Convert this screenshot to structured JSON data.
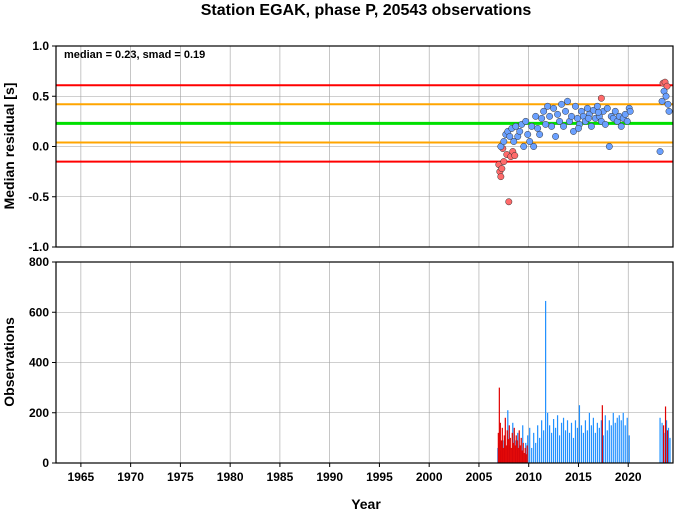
{
  "title": "Station EGAK, phase P, 20543 observations",
  "colors": {
    "green_line": "#00e000",
    "orange_line": "#ffa500",
    "red_line": "#ff0000",
    "point_good_fill": "#6aa0ff",
    "point_bad_fill": "#ff6a6a",
    "bar_blue": "#2090ff",
    "bar_red": "#e00000"
  },
  "chart_data": [
    {
      "type": "scatter",
      "ylabel": "Median residual [s]",
      "annotation": "median = 0.23, smad = 0.19",
      "xlim": [
        1962.5,
        2024.5
      ],
      "ylim": [
        -1.0,
        1.0
      ],
      "grid": true,
      "y_ticks": [
        "1.0",
        "0.5",
        "0.0",
        "-0.5",
        "-1.0"
      ],
      "horizontal_lines": [
        {
          "y": 0.61,
          "color": "red"
        },
        {
          "y": 0.42,
          "color": "orange"
        },
        {
          "y": 0.23,
          "color": "green"
        },
        {
          "y": 0.04,
          "color": "orange"
        },
        {
          "y": -0.15,
          "color": "red"
        }
      ],
      "series": [
        {
          "color_key": "red",
          "points": [
            [
              2007.0,
              -0.18
            ],
            [
              2007.1,
              -0.25
            ],
            [
              2007.2,
              -0.3
            ],
            [
              2007.3,
              -0.22
            ],
            [
              2007.5,
              -0.15
            ],
            [
              2007.8,
              -0.08
            ],
            [
              2008.0,
              -0.55
            ],
            [
              2008.2,
              -0.1
            ],
            [
              2008.4,
              -0.05
            ],
            [
              2008.6,
              -0.09
            ],
            [
              2007.4,
              -0.02
            ],
            [
              2017.3,
              0.48
            ],
            [
              2023.5,
              0.63
            ],
            [
              2023.7,
              0.64
            ],
            [
              2023.9,
              0.6
            ]
          ]
        },
        {
          "color_key": "blue",
          "points": [
            [
              2007.2,
              0.0
            ],
            [
              2007.5,
              0.05
            ],
            [
              2007.7,
              0.12
            ],
            [
              2007.9,
              0.15
            ],
            [
              2008.1,
              0.1
            ],
            [
              2008.3,
              0.18
            ],
            [
              2008.5,
              0.05
            ],
            [
              2008.7,
              0.2
            ],
            [
              2008.9,
              0.1
            ],
            [
              2009.1,
              0.15
            ],
            [
              2009.3,
              0.22
            ],
            [
              2009.5,
              0.0
            ],
            [
              2009.7,
              0.25
            ],
            [
              2009.9,
              0.12
            ],
            [
              2010.1,
              0.05
            ],
            [
              2010.3,
              0.2
            ],
            [
              2010.5,
              0.0
            ],
            [
              2010.7,
              0.3
            ],
            [
              2010.9,
              0.18
            ],
            [
              2011.1,
              0.12
            ],
            [
              2011.3,
              0.28
            ],
            [
              2011.5,
              0.35
            ],
            [
              2011.7,
              0.22
            ],
            [
              2011.9,
              0.4
            ],
            [
              2012.1,
              0.3
            ],
            [
              2012.3,
              0.2
            ],
            [
              2012.5,
              0.38
            ],
            [
              2012.7,
              0.1
            ],
            [
              2012.9,
              0.32
            ],
            [
              2013.1,
              0.25
            ],
            [
              2013.3,
              0.42
            ],
            [
              2013.5,
              0.2
            ],
            [
              2013.7,
              0.35
            ],
            [
              2013.9,
              0.45
            ],
            [
              2014.1,
              0.25
            ],
            [
              2014.3,
              0.3
            ],
            [
              2014.5,
              0.15
            ],
            [
              2014.7,
              0.4
            ],
            [
              2014.9,
              0.28
            ],
            [
              2015.1,
              0.22
            ],
            [
              2015.3,
              0.35
            ],
            [
              2015.5,
              0.3
            ],
            [
              2015.7,
              0.25
            ],
            [
              2015.9,
              0.38
            ],
            [
              2016.1,
              0.32
            ],
            [
              2016.3,
              0.2
            ],
            [
              2016.5,
              0.36
            ],
            [
              2016.7,
              0.28
            ],
            [
              2016.9,
              0.4
            ],
            [
              2017.1,
              0.3
            ],
            [
              2017.3,
              0.25
            ],
            [
              2017.5,
              0.35
            ],
            [
              2017.7,
              0.22
            ],
            [
              2017.9,
              0.38
            ],
            [
              2018.1,
              0.0
            ],
            [
              2018.3,
              0.3
            ],
            [
              2018.5,
              0.28
            ],
            [
              2018.7,
              0.35
            ],
            [
              2018.9,
              0.25
            ],
            [
              2019.1,
              0.3
            ],
            [
              2019.3,
              0.2
            ],
            [
              2019.5,
              0.28
            ],
            [
              2019.7,
              0.32
            ],
            [
              2019.9,
              0.25
            ],
            [
              2020.1,
              0.38
            ],
            [
              2020.2,
              0.35
            ],
            [
              2023.2,
              -0.05
            ],
            [
              2023.4,
              0.45
            ],
            [
              2023.6,
              0.55
            ],
            [
              2023.8,
              0.5
            ],
            [
              2024.0,
              0.42
            ],
            [
              2024.1,
              0.35
            ],
            [
              2015.0,
              0.18
            ],
            [
              2016.0,
              0.28
            ],
            [
              2017.0,
              0.34
            ]
          ]
        }
      ]
    },
    {
      "type": "bar",
      "xlabel": "Year",
      "ylabel": "Observations",
      "xlim": [
        1962.5,
        2024.5
      ],
      "ylim": [
        0,
        800
      ],
      "grid": true,
      "x_ticks": [
        "1965",
        "1970",
        "1975",
        "1980",
        "1985",
        "1990",
        "1995",
        "2000",
        "2005",
        "2010",
        "2015",
        "2020"
      ],
      "y_ticks": [
        "800",
        "600",
        "400",
        "200",
        "0"
      ],
      "series": [
        {
          "color_key": "red",
          "bars": [
            [
              2006.95,
              120
            ],
            [
              2007.05,
              300
            ],
            [
              2007.15,
              160
            ],
            [
              2007.25,
              90
            ],
            [
              2007.35,
              140
            ],
            [
              2007.45,
              60
            ],
            [
              2007.55,
              110
            ],
            [
              2007.65,
              180
            ],
            [
              2007.75,
              70
            ],
            [
              2007.85,
              130
            ],
            [
              2007.95,
              95
            ],
            [
              2008.05,
              150
            ],
            [
              2008.15,
              100
            ],
            [
              2008.25,
              60
            ],
            [
              2008.35,
              120
            ],
            [
              2008.45,
              80
            ],
            [
              2008.55,
              140
            ],
            [
              2008.65,
              70
            ],
            [
              2008.75,
              110
            ],
            [
              2008.85,
              90
            ],
            [
              2008.95,
              60
            ],
            [
              2009.05,
              130
            ],
            [
              2009.15,
              70
            ],
            [
              2009.25,
              100
            ],
            [
              2009.35,
              50
            ],
            [
              2009.45,
              80
            ],
            [
              2009.55,
              40
            ],
            [
              2009.65,
              60
            ],
            [
              2009.75,
              35
            ],
            [
              2009.85,
              70
            ],
            [
              2017.4,
              230
            ],
            [
              2023.55,
              150
            ],
            [
              2023.75,
              225
            ],
            [
              2023.95,
              130
            ]
          ]
        },
        {
          "color_key": "blue",
          "bars": [
            [
              2006.9,
              60
            ],
            [
              2007.0,
              80
            ],
            [
              2007.2,
              50
            ],
            [
              2007.4,
              90
            ],
            [
              2007.6,
              100
            ],
            [
              2007.9,
              210
            ],
            [
              2008.1,
              70
            ],
            [
              2008.4,
              160
            ],
            [
              2008.7,
              90
            ],
            [
              2008.9,
              120
            ],
            [
              2009.1,
              60
            ],
            [
              2009.4,
              150
            ],
            [
              2009.7,
              80
            ],
            [
              2009.9,
              110
            ],
            [
              2010.1,
              140
            ],
            [
              2010.3,
              60
            ],
            [
              2010.5,
              120
            ],
            [
              2010.7,
              80
            ],
            [
              2010.9,
              150
            ],
            [
              2011.1,
              100
            ],
            [
              2011.3,
              170
            ],
            [
              2011.5,
              130
            ],
            [
              2011.7,
              645
            ],
            [
              2011.9,
              200
            ],
            [
              2012.1,
              150
            ],
            [
              2012.3,
              120
            ],
            [
              2012.5,
              175
            ],
            [
              2012.7,
              140
            ],
            [
              2012.9,
              190
            ],
            [
              2013.1,
              110
            ],
            [
              2013.3,
              160
            ],
            [
              2013.5,
              180
            ],
            [
              2013.7,
              130
            ],
            [
              2013.9,
              170
            ],
            [
              2014.1,
              120
            ],
            [
              2014.3,
              160
            ],
            [
              2014.5,
              100
            ],
            [
              2014.7,
              170
            ],
            [
              2014.9,
              140
            ],
            [
              2015.1,
              230
            ],
            [
              2015.3,
              150
            ],
            [
              2015.5,
              120
            ],
            [
              2015.7,
              170
            ],
            [
              2015.9,
              130
            ],
            [
              2016.1,
              200
            ],
            [
              2016.3,
              150
            ],
            [
              2016.5,
              180
            ],
            [
              2016.7,
              120
            ],
            [
              2016.9,
              160
            ],
            [
              2017.1,
              140
            ],
            [
              2017.3,
              170
            ],
            [
              2017.5,
              110
            ],
            [
              2017.7,
              190
            ],
            [
              2017.9,
              130
            ],
            [
              2018.1,
              170
            ],
            [
              2018.3,
              150
            ],
            [
              2018.5,
              200
            ],
            [
              2018.7,
              160
            ],
            [
              2018.9,
              180
            ],
            [
              2019.1,
              190
            ],
            [
              2019.3,
              170
            ],
            [
              2019.5,
              200
            ],
            [
              2019.7,
              150
            ],
            [
              2019.9,
              180
            ],
            [
              2020.1,
              110
            ],
            [
              2023.2,
              180
            ],
            [
              2023.4,
              160
            ],
            [
              2023.6,
              120
            ],
            [
              2023.85,
              170
            ],
            [
              2024.05,
              140
            ],
            [
              2024.2,
              100
            ]
          ]
        }
      ]
    }
  ]
}
